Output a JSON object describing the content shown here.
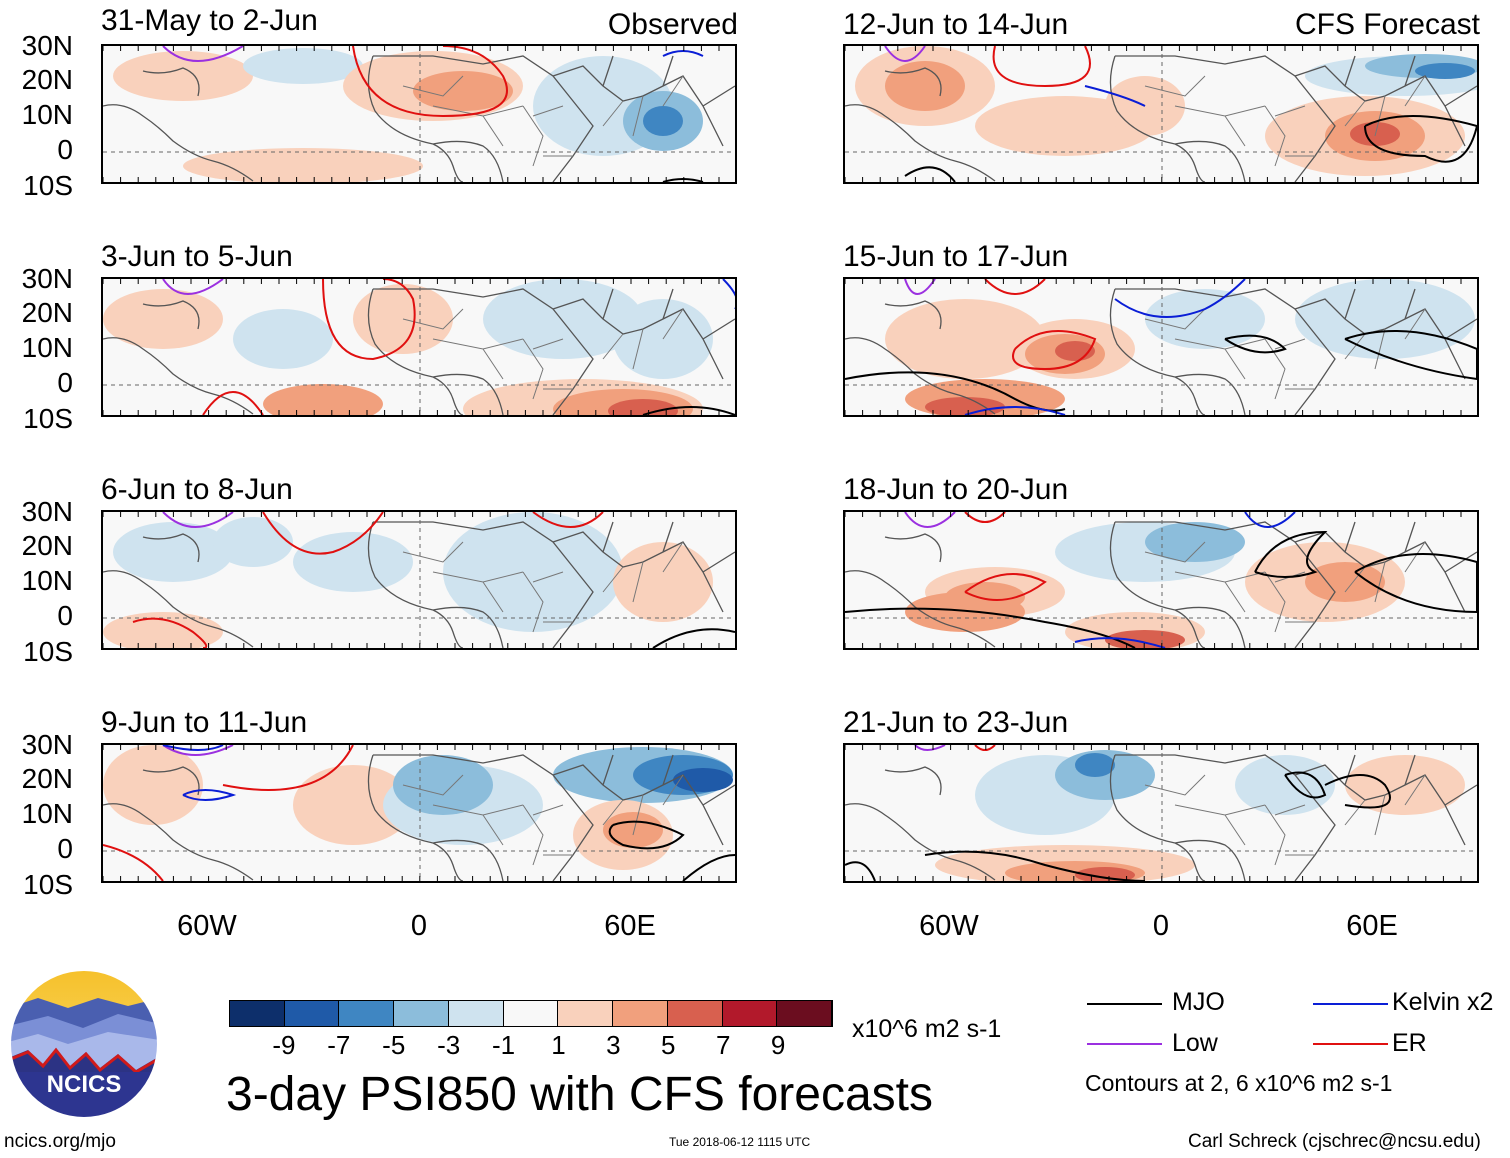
{
  "panels": {
    "left": [
      {
        "title": "31-May to 2-Jun",
        "source": "Observed"
      },
      {
        "title": "3-Jun to 5-Jun",
        "source": ""
      },
      {
        "title": "6-Jun to 8-Jun",
        "source": ""
      },
      {
        "title": "9-Jun to 11-Jun",
        "source": ""
      }
    ],
    "right": [
      {
        "title": "12-Jun to 14-Jun",
        "source": "CFS Forecast"
      },
      {
        "title": "15-Jun to 17-Jun",
        "source": ""
      },
      {
        "title": "18-Jun to 20-Jun",
        "source": ""
      },
      {
        "title": "21-Jun to 23-Jun",
        "source": ""
      }
    ]
  },
  "lat_labels": [
    "30N",
    "20N",
    "10N",
    "0",
    "10S"
  ],
  "lon_labels": [
    "60W",
    "0",
    "60E"
  ],
  "colorbar": {
    "tick_labels": [
      "-9",
      "-7",
      "-5",
      "-3",
      "-1",
      "1",
      "3",
      "5",
      "7",
      "9"
    ],
    "units": "x10^6 m2 s-1",
    "colors": [
      "#0d2f6b",
      "#1f5aa8",
      "#3f86c2",
      "#8cbddb",
      "#cfe3ef",
      "#f8f8f8",
      "#f9d1bc",
      "#f1a07d",
      "#d8604f",
      "#b2192b",
      "#6b0d1f"
    ]
  },
  "title": "3-day PSI850 with CFS forecasts",
  "legend": {
    "items": [
      {
        "label": "MJO",
        "color": "#000000"
      },
      {
        "label": "Kelvin x2",
        "color": "#0a1ed6"
      },
      {
        "label": "Low",
        "color": "#9b30e0"
      },
      {
        "label": "ER",
        "color": "#e01010"
      }
    ],
    "note": "Contours at 2, 6 x10^6 m2 s-1"
  },
  "logo": {
    "text": "NCICS"
  },
  "footer": {
    "url": "ncics.org/mjo",
    "timestamp": "Tue 2018-06-12 1115 UTC",
    "credit": "Carl Schreck (cjschrec@ncsu.edu)"
  }
}
